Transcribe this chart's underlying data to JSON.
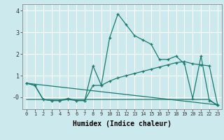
{
  "xlabel": "Humidex (Indice chaleur)",
  "background_color": "#cce9ed",
  "line_color": "#1a7a6e",
  "grid_color": "#ffffff",
  "xlim": [
    -0.5,
    23.5
  ],
  "ylim": [
    -0.55,
    4.3
  ],
  "xtick_labels": [
    "0",
    "1",
    "2",
    "3",
    "4",
    "5",
    "6",
    "7",
    "8",
    "9",
    "10",
    "11",
    "12",
    "13",
    "14",
    "15",
    "16",
    "17",
    "18",
    "19",
    "20",
    "21",
    "22",
    "23"
  ],
  "series1_x": [
    0,
    1,
    2,
    3,
    4,
    5,
    6,
    7,
    8,
    9,
    10,
    11,
    12,
    13,
    14,
    15,
    16,
    17,
    18,
    19,
    20,
    21,
    22,
    23
  ],
  "series1_y": [
    0.65,
    0.55,
    -0.1,
    -0.15,
    -0.15,
    -0.1,
    -0.15,
    -0.15,
    1.45,
    0.55,
    2.75,
    3.85,
    3.35,
    2.85,
    2.65,
    2.45,
    1.75,
    1.75,
    1.9,
    1.55,
    -0.05,
    1.9,
    -0.15,
    -0.35
  ],
  "series2_x": [
    0,
    1,
    2,
    3,
    4,
    5,
    6,
    7,
    8,
    9,
    10,
    11,
    12,
    13,
    14,
    15,
    16,
    17,
    18,
    19,
    20,
    21,
    22,
    23
  ],
  "series2_y": [
    0.65,
    0.55,
    -0.1,
    -0.15,
    -0.15,
    -0.05,
    -0.15,
    -0.15,
    0.55,
    0.55,
    0.75,
    0.9,
    1.0,
    1.1,
    1.2,
    1.3,
    1.4,
    1.5,
    1.6,
    1.65,
    1.55,
    1.5,
    1.45,
    -0.35
  ],
  "series3_x": [
    0,
    23
  ],
  "series3_y": [
    0.65,
    -0.35
  ],
  "series4_x": [
    0,
    1,
    2,
    3,
    4,
    5,
    6,
    7,
    8,
    9,
    10,
    11,
    12,
    13,
    14,
    15,
    16,
    17,
    18,
    19,
    20,
    21,
    22,
    23
  ],
  "series4_y": [
    -0.1,
    -0.1,
    -0.1,
    -0.1,
    -0.1,
    -0.1,
    -0.1,
    -0.1,
    -0.1,
    -0.1,
    -0.1,
    -0.1,
    -0.1,
    -0.1,
    -0.1,
    -0.1,
    -0.1,
    -0.1,
    -0.1,
    -0.1,
    -0.1,
    -0.1,
    -0.1,
    -0.4
  ]
}
